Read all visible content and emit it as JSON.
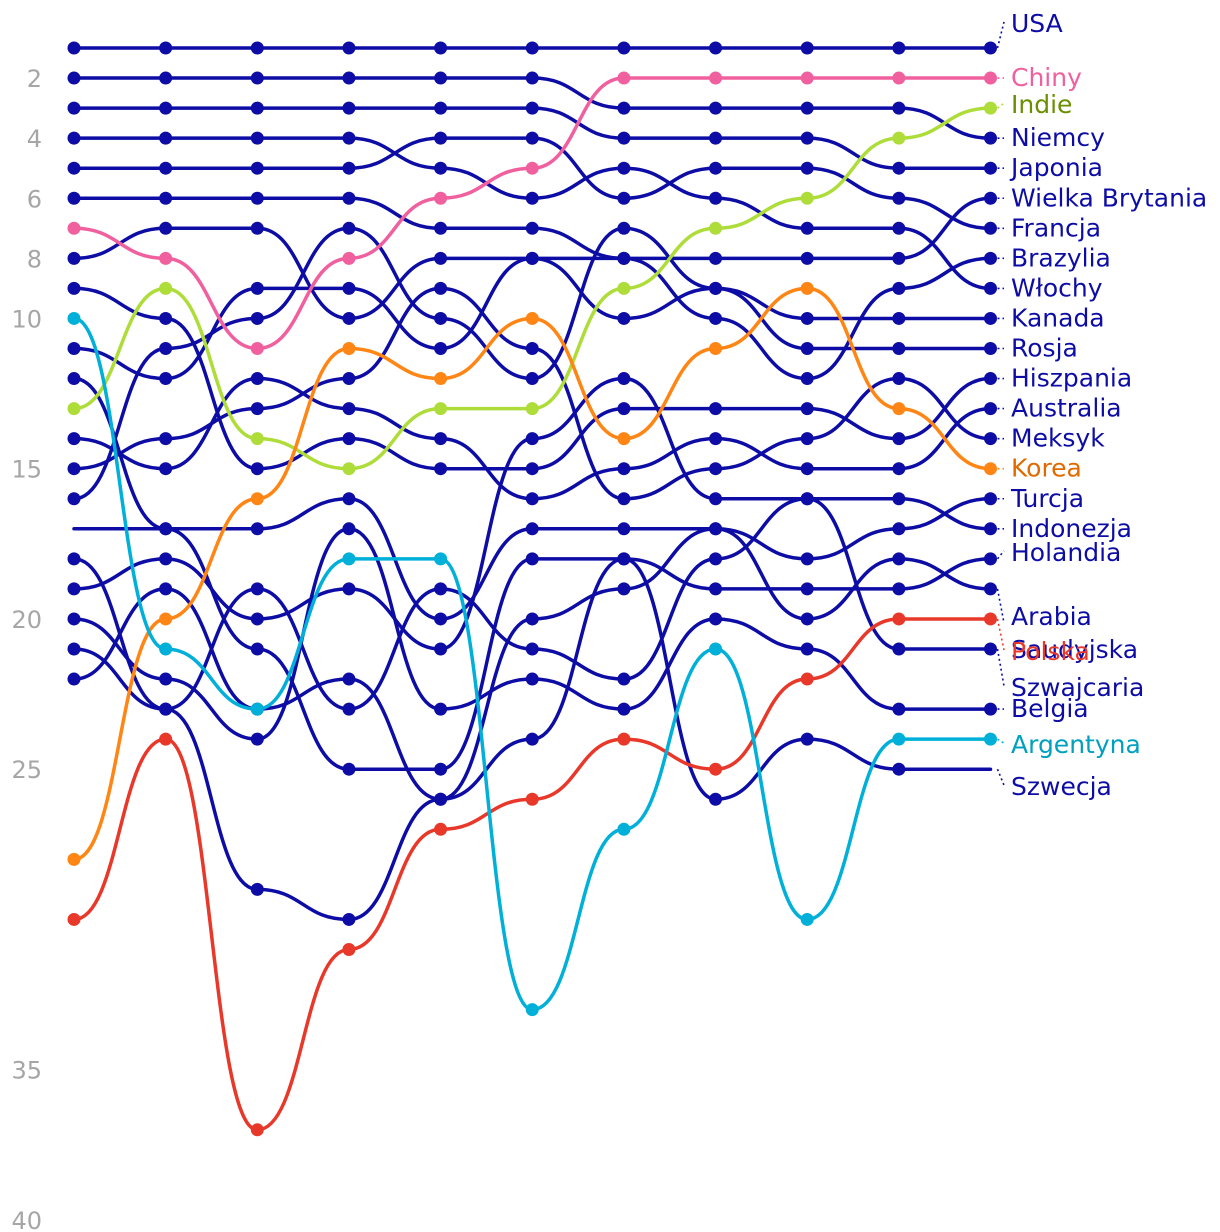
{
  "chart_data": {
    "type": "line",
    "title": "",
    "xlabel": "",
    "ylabel": "",
    "y_inverted": true,
    "ylim": [
      0.5,
      40
    ],
    "yticks": [
      "2",
      "4",
      "6",
      "8",
      "10",
      "15",
      "20",
      "25",
      "35",
      "40"
    ],
    "grid": false,
    "legend": "direct labels at right end of each line",
    "x": [
      1,
      2,
      3,
      4,
      5,
      6,
      7,
      8,
      9,
      10,
      11
    ],
    "colors": {
      "default": "#0d0da6",
      "Chiny": "#f0609e",
      "Indie": "#aedd3a",
      "Indie_label": "#6a8f00",
      "Korea": "#ff8514",
      "Korea_label": "#e06a00",
      "Polska": "#e8382a",
      "Argentyna": "#00b0d8",
      "Argentyna_label": "#00a0bf"
    },
    "series": [
      {
        "name": "USA",
        "values": [
          1,
          1,
          1,
          1,
          1,
          1,
          1,
          1,
          1,
          1,
          1
        ],
        "labelAt": 0.2
      },
      {
        "name": "Chiny",
        "values": [
          7,
          8,
          11,
          8,
          6,
          5,
          2,
          2,
          2,
          2,
          2
        ]
      },
      {
        "name": "Indie",
        "values": [
          13,
          9,
          14,
          15,
          13,
          13,
          9,
          7,
          6,
          4,
          3
        ],
        "labelAt": 2.9
      },
      {
        "name": "Niemcy",
        "values": [
          2,
          2,
          2,
          2,
          2,
          2,
          3,
          3,
          3,
          3,
          4
        ]
      },
      {
        "name": "Japonia",
        "values": [
          3,
          3,
          3,
          3,
          3,
          3,
          4,
          4,
          4,
          5,
          5
        ]
      },
      {
        "name": "Wielka Brytania",
        "values": [
          6,
          6,
          6,
          6,
          7,
          7,
          8,
          8,
          8,
          8,
          6
        ]
      },
      {
        "name": "Francja",
        "values": [
          5,
          5,
          5,
          5,
          4,
          4,
          6,
          5,
          5,
          6,
          7
        ]
      },
      {
        "name": "Kanada",
        "values": [
          11,
          12,
          9,
          9,
          11,
          8,
          10,
          9,
          10,
          10,
          10
        ]
      },
      {
        "name": "Włochy",
        "values": [
          4,
          4,
          4,
          4,
          5,
          6,
          5,
          6,
          7,
          7,
          9
        ]
      },
      {
        "name": "Brazylia",
        "values": [
          8,
          7,
          7,
          10,
          8,
          8,
          8,
          10,
          12,
          9,
          8
        ]
      },
      {
        "name": "Rosja",
        "values": [
          16,
          11,
          10,
          7,
          10,
          12,
          7,
          9,
          11,
          11,
          11
        ]
      },
      {
        "name": "Hiszpania",
        "values": [
          9,
          10,
          15,
          14,
          15,
          15,
          13,
          13,
          13,
          14,
          12
        ]
      },
      {
        "name": "Australia",
        "values": [
          14,
          15,
          12,
          13,
          14,
          16,
          15,
          14,
          15,
          15,
          13
        ]
      },
      {
        "name": "Meksyk",
        "values": [
          15,
          14,
          13,
          12,
          9,
          11,
          16,
          15,
          14,
          12,
          14
        ]
      },
      {
        "name": "Korea",
        "values": [
          28,
          20,
          16,
          11,
          12,
          10,
          14,
          11,
          9,
          13,
          15
        ]
      },
      {
        "name": "Indonezja",
        "values": [
          19,
          18,
          20,
          19,
          21,
          14,
          12,
          16,
          16,
          16,
          17
        ]
      },
      {
        "name": "Turcja",
        "values": [
          17,
          17,
          17,
          16,
          20,
          17,
          17,
          17,
          18,
          17,
          16
        ]
      },
      {
        "name": "Holandia",
        "values": [
          12,
          17,
          21,
          25,
          25,
          18,
          18,
          19,
          19,
          19,
          18
        ],
        "labelAt": 17.8
      },
      {
        "name": "Arabia Saudyjska",
        "values": [
          22,
          19,
          23,
          22,
          26,
          20,
          19,
          17,
          20,
          18,
          19
        ],
        "labelAt": 20.2
      },
      {
        "name": "Polska",
        "values": [
          30,
          24,
          37,
          31,
          27,
          26,
          24,
          25,
          22,
          20,
          20
        ],
        "labelAt": 21.1
      },
      {
        "name": "Szwajcaria",
        "values": [
          18,
          23,
          19,
          23,
          19,
          21,
          22,
          18,
          16,
          21,
          21
        ],
        "labelAt": 22.3
      },
      {
        "name": "Belgia",
        "values": [
          20,
          22,
          24,
          17,
          23,
          22,
          23,
          20,
          21,
          23,
          23
        ],
        "labelAt": 23.0
      },
      {
        "name": "Argentyna",
        "values": [
          10,
          21,
          23,
          18,
          18,
          33,
          27,
          21,
          30,
          24,
          24
        ],
        "labelAt": 24.2
      },
      {
        "name": "Szwecja",
        "values": [
          21,
          23,
          29,
          30,
          26,
          24,
          18,
          26,
          24,
          25,
          25
        ],
        "labelAt": 25.6
      }
    ],
    "unmarked_points": [
      {
        "series": "Turcja",
        "index": 0
      },
      {
        "series": "Szwecja",
        "index": 10
      }
    ]
  }
}
